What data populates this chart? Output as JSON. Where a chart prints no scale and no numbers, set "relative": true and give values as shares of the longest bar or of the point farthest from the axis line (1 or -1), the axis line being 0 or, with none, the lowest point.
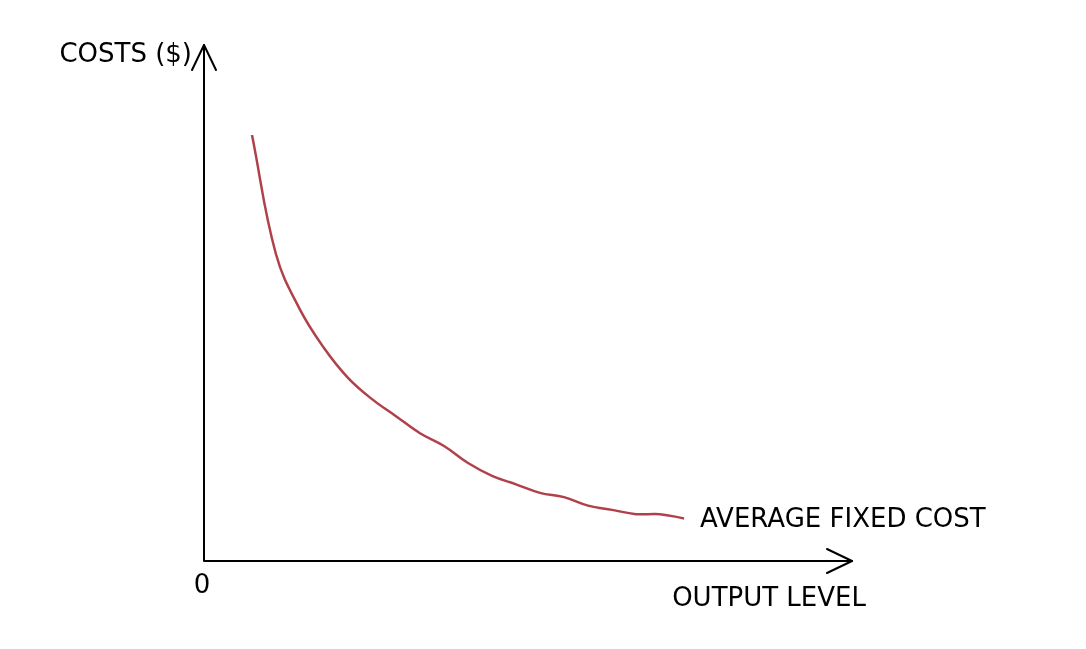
{
  "chart_data": {
    "type": "line",
    "relative": true,
    "ylabel": "COSTS ($)",
    "xlabel": "OUTPUT LEVEL",
    "annotations": [
      "0"
    ],
    "legend": false,
    "marker": "none",
    "line_style": "solid",
    "categories": [
      null,
      null,
      null,
      null,
      null,
      null,
      null,
      null,
      null,
      null,
      null,
      null,
      null,
      null,
      null,
      null,
      null,
      null,
      null,
      null,
      null,
      null,
      null,
      null,
      null,
      null,
      null,
      null
    ],
    "series": [
      {
        "name": "AVERAGE FIXED COST",
        "color": "#b0414a",
        "values": [
          null,
          null,
          1.0,
          0.72,
          0.59,
          0.5,
          0.43,
          0.38,
          0.34,
          0.3,
          0.27,
          0.23,
          0.2,
          0.18,
          0.16,
          0.15,
          0.13,
          0.12,
          0.11,
          0.11,
          0.1,
          null,
          null,
          null,
          null,
          null,
          null,
          null
        ]
      }
    ]
  }
}
